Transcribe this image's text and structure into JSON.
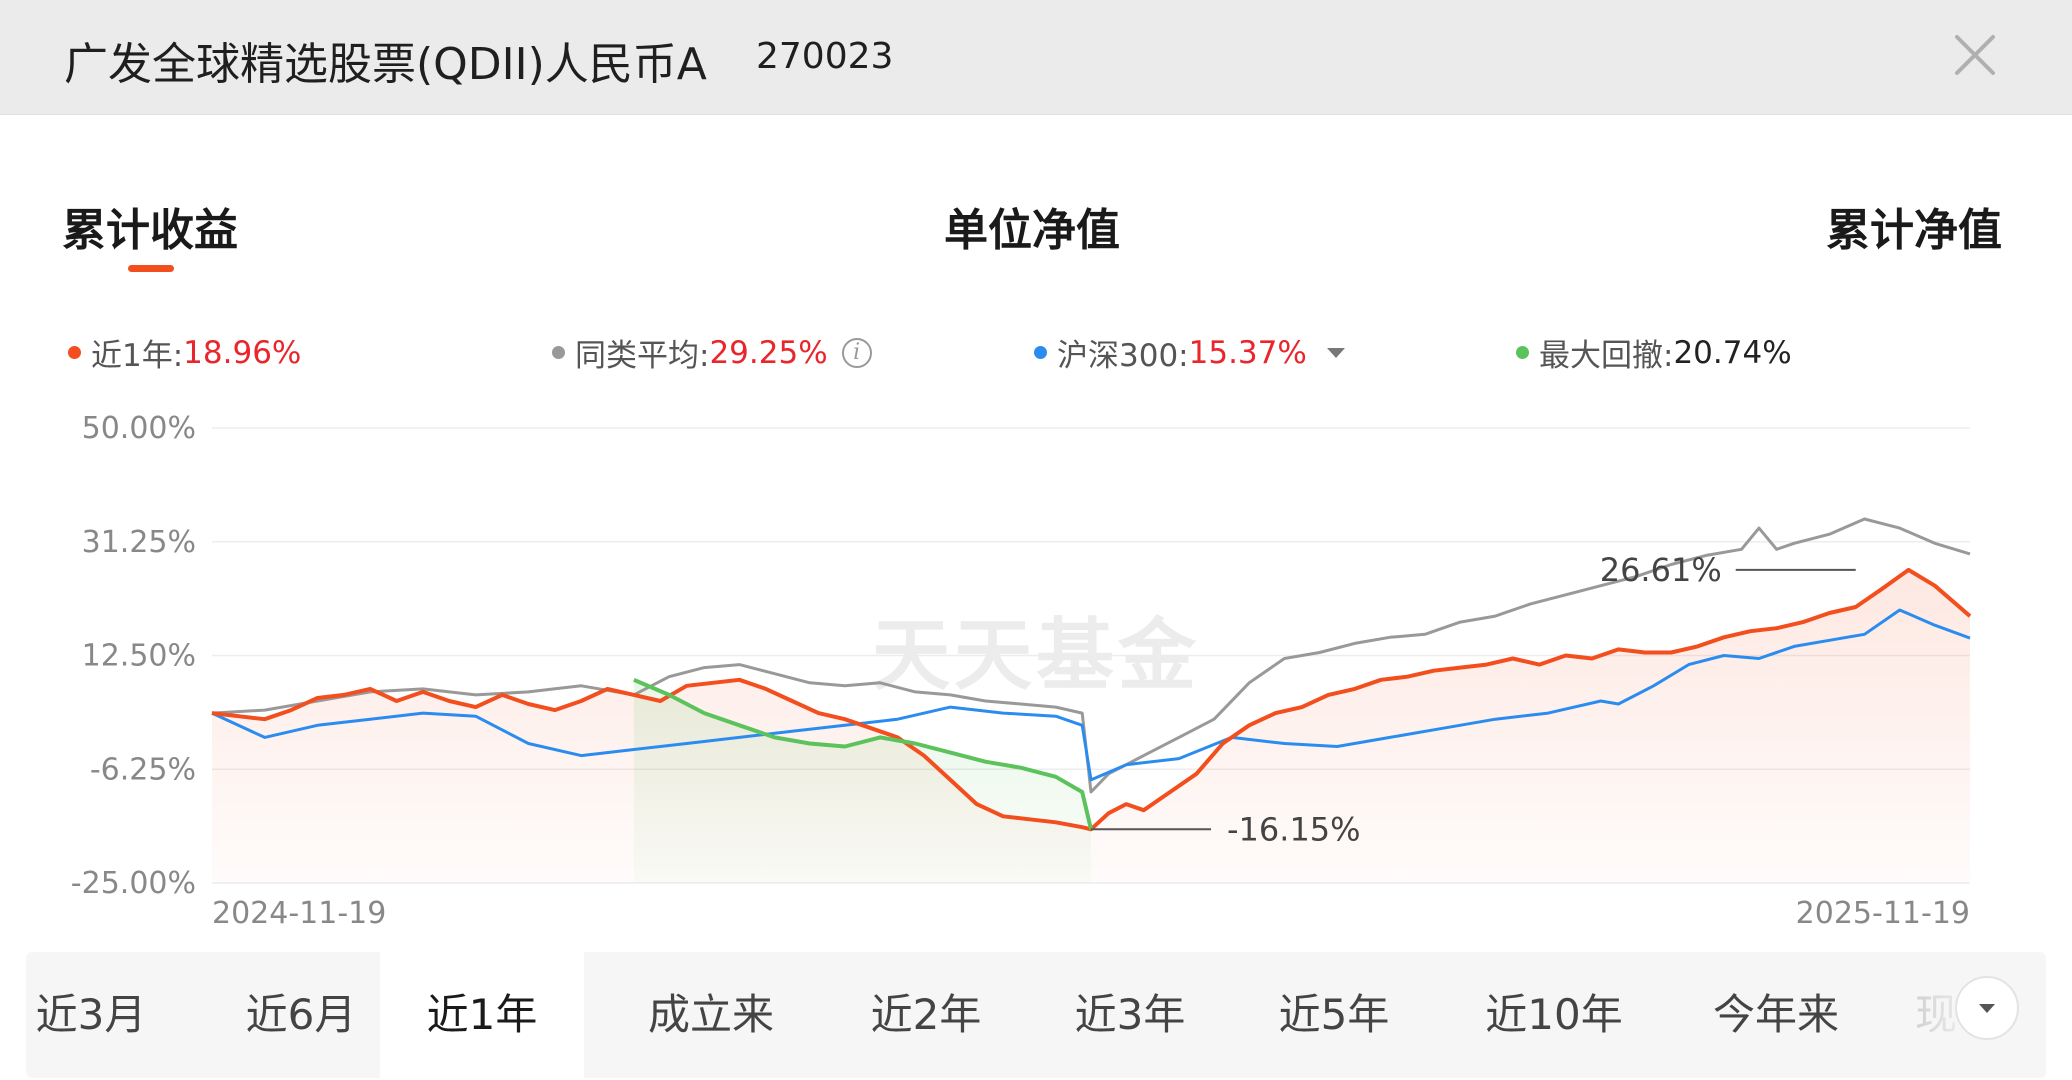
{
  "header": {
    "title": "广发全球精选股票(QDII)人民币A",
    "code": "270023"
  },
  "tabs": [
    {
      "label": "累计收益",
      "active": true
    },
    {
      "label": "单位净值",
      "active": false
    },
    {
      "label": "累计净值",
      "active": false
    }
  ],
  "legend": [
    {
      "label": "近1年:",
      "value": "18.96%",
      "color": "#f24e1e"
    },
    {
      "label": "同类平均:",
      "value": "29.25%",
      "color": "#999999"
    },
    {
      "label": "沪深300:",
      "value": "15.37%",
      "color": "#2b8cf0"
    },
    {
      "label": "最大回撤:",
      "value": "20.74%",
      "color": "#5cc35c"
    }
  ],
  "watermark": "天天基金",
  "chart_data": {
    "type": "line",
    "x_start": "2024-11-19",
    "x_end": "2025-11-19",
    "x_tick_labels": [
      "2024-11-19",
      "2025-11-19"
    ],
    "y_tick_labels": [
      "50.00%",
      "31.25%",
      "12.50%",
      "-6.25%",
      "-25.00%"
    ],
    "ylim": [
      -25,
      50
    ],
    "grid": true,
    "series": [
      {
        "name": "近1年",
        "color": "#f24e1e",
        "x": [
          0.0,
          0.015,
          0.03,
          0.045,
          0.06,
          0.075,
          0.09,
          0.105,
          0.12,
          0.135,
          0.15,
          0.165,
          0.18,
          0.195,
          0.21,
          0.225,
          0.24,
          0.255,
          0.27,
          0.285,
          0.3,
          0.315,
          0.33,
          0.345,
          0.36,
          0.375,
          0.39,
          0.405,
          0.42,
          0.435,
          0.45,
          0.465,
          0.48,
          0.495,
          0.5,
          0.51,
          0.52,
          0.53,
          0.545,
          0.56,
          0.575,
          0.59,
          0.605,
          0.62,
          0.635,
          0.65,
          0.665,
          0.68,
          0.695,
          0.71,
          0.725,
          0.74,
          0.755,
          0.77,
          0.785,
          0.8,
          0.815,
          0.83,
          0.845,
          0.86,
          0.875,
          0.89,
          0.905,
          0.92,
          0.935,
          0.95,
          0.965,
          0.98,
          1.0
        ],
        "values": [
          3.0,
          2.5,
          2.0,
          3.5,
          5.5,
          6.0,
          7.0,
          5.0,
          6.5,
          5.0,
          4.0,
          6.0,
          4.5,
          3.5,
          5.0,
          7.0,
          6.0,
          5.0,
          7.5,
          8.0,
          8.5,
          7.0,
          5.0,
          3.0,
          2.0,
          0.5,
          -1.0,
          -4.0,
          -8.0,
          -12.0,
          -14.0,
          -14.5,
          -15.0,
          -15.8,
          -16.15,
          -13.5,
          -12.0,
          -13.0,
          -10.0,
          -7.0,
          -2.0,
          1.0,
          3.0,
          4.0,
          6.0,
          7.0,
          8.5,
          9.0,
          10.0,
          10.5,
          11.0,
          12.0,
          11.0,
          12.5,
          12.0,
          13.5,
          13.0,
          13.0,
          14.0,
          15.5,
          16.5,
          17.0,
          18.0,
          19.5,
          20.5,
          23.5,
          26.61,
          24.0,
          19.0
        ],
        "fill": true
      },
      {
        "name": "同类平均",
        "color": "#999999",
        "x": [
          0.0,
          0.03,
          0.06,
          0.09,
          0.12,
          0.15,
          0.18,
          0.21,
          0.24,
          0.26,
          0.28,
          0.3,
          0.32,
          0.34,
          0.36,
          0.38,
          0.4,
          0.42,
          0.44,
          0.46,
          0.48,
          0.495,
          0.5,
          0.51,
          0.53,
          0.55,
          0.57,
          0.59,
          0.61,
          0.63,
          0.65,
          0.67,
          0.69,
          0.71,
          0.73,
          0.75,
          0.77,
          0.79,
          0.81,
          0.83,
          0.85,
          0.87,
          0.88,
          0.89,
          0.9,
          0.92,
          0.94,
          0.96,
          0.98,
          1.0
        ],
        "values": [
          3.0,
          3.5,
          5.0,
          6.5,
          7.0,
          6.0,
          6.5,
          7.5,
          6.0,
          9.0,
          10.5,
          11.0,
          9.5,
          8.0,
          7.5,
          8.0,
          6.5,
          6.0,
          5.0,
          4.5,
          4.0,
          3.0,
          -10.0,
          -7.0,
          -4.0,
          -1.0,
          2.0,
          8.0,
          12.0,
          13.0,
          14.5,
          15.5,
          16.0,
          18.0,
          19.0,
          21.0,
          22.5,
          24.0,
          25.5,
          27.5,
          29.0,
          30.0,
          33.5,
          30.0,
          31.0,
          32.5,
          35.0,
          33.5,
          31.0,
          29.25
        ],
        "fill": false
      },
      {
        "name": "沪深300",
        "color": "#2b8cf0",
        "x": [
          0.0,
          0.03,
          0.06,
          0.09,
          0.12,
          0.15,
          0.18,
          0.21,
          0.24,
          0.27,
          0.3,
          0.33,
          0.36,
          0.39,
          0.42,
          0.45,
          0.48,
          0.495,
          0.5,
          0.52,
          0.55,
          0.58,
          0.61,
          0.64,
          0.67,
          0.7,
          0.73,
          0.76,
          0.79,
          0.8,
          0.82,
          0.84,
          0.86,
          0.88,
          0.9,
          0.92,
          0.94,
          0.96,
          0.98,
          1.0
        ],
        "values": [
          3.0,
          -1.0,
          1.0,
          2.0,
          3.0,
          2.5,
          -2.0,
          -4.0,
          -3.0,
          -2.0,
          -1.0,
          0.0,
          1.0,
          2.0,
          4.0,
          3.0,
          2.5,
          1.0,
          -8.0,
          -5.5,
          -4.5,
          -1.0,
          -2.0,
          -2.5,
          -1.0,
          0.5,
          2.0,
          3.0,
          5.0,
          4.5,
          7.5,
          11.0,
          12.5,
          12.0,
          14.0,
          15.0,
          16.0,
          20.0,
          17.5,
          15.37
        ],
        "fill": false
      },
      {
        "name": "最大回撤",
        "color": "#5cc35c",
        "x": [
          0.24,
          0.26,
          0.28,
          0.3,
          0.32,
          0.34,
          0.36,
          0.38,
          0.4,
          0.42,
          0.44,
          0.46,
          0.48,
          0.495,
          0.5
        ],
        "values": [
          8.5,
          6.0,
          3.0,
          1.0,
          -1.0,
          -2.0,
          -2.5,
          -1.0,
          -2.0,
          -3.5,
          -5.0,
          -6.0,
          -7.5,
          -10.0,
          -16.15
        ],
        "fill": true
      }
    ],
    "annotations": [
      {
        "text": "26.61%",
        "x": 0.935,
        "value": 26.61
      },
      {
        "text": "-16.15%",
        "x": 0.5,
        "value": -16.15
      }
    ]
  },
  "periods": [
    {
      "label": "近3月",
      "active": false
    },
    {
      "label": "近6月",
      "active": false
    },
    {
      "label": "近1年",
      "active": true
    },
    {
      "label": "成立来",
      "active": false
    },
    {
      "label": "近2年",
      "active": false
    },
    {
      "label": "近3年",
      "active": false
    },
    {
      "label": "近5年",
      "active": false
    },
    {
      "label": "近10年",
      "active": false
    },
    {
      "label": "今年来",
      "active": false
    },
    {
      "label": "现",
      "active": false
    }
  ]
}
